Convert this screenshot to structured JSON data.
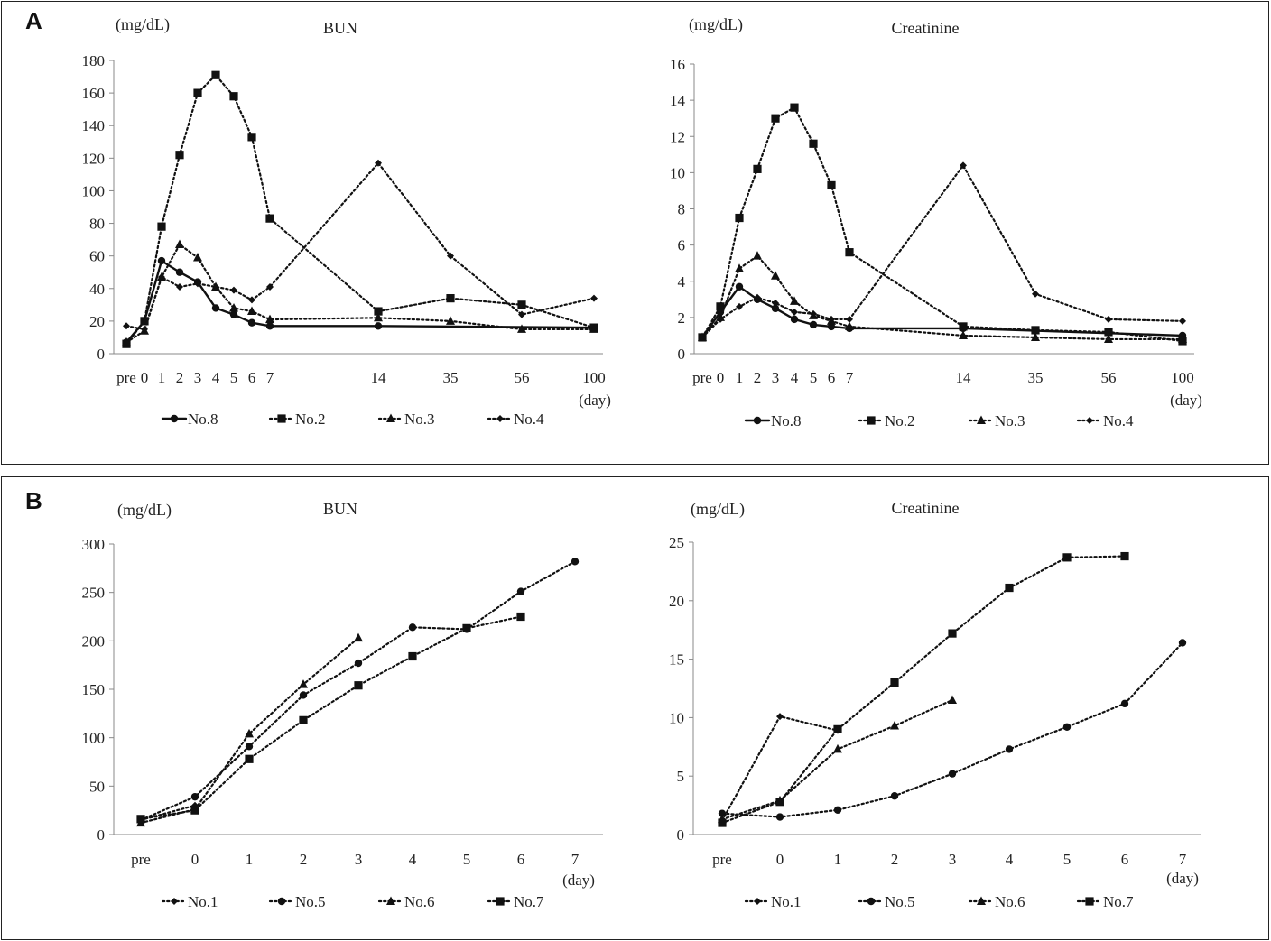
{
  "panels": [
    {
      "label": "A"
    },
    {
      "label": "B"
    }
  ],
  "chart_data": [
    {
      "panel": "A",
      "type": "line",
      "title": "BUN",
      "unit_label": "(mg/dL)",
      "xlabel": "(day)",
      "categories": [
        "pre",
        "0",
        "1",
        "2",
        "3",
        "4",
        "5",
        "6",
        "7",
        "14",
        "35",
        "56",
        "100"
      ],
      "ylim": [
        0,
        180
      ],
      "yticks": [
        0,
        20,
        40,
        60,
        80,
        100,
        120,
        140,
        160,
        180
      ],
      "series": [
        {
          "name": "No.8",
          "marker": "circle",
          "style": "solid",
          "values": [
            7,
            20,
            57,
            50,
            44,
            28,
            24,
            19,
            17,
            17,
            null,
            null,
            16
          ]
        },
        {
          "name": "No.2",
          "marker": "square",
          "style": "dotted",
          "values": [
            6,
            20,
            78,
            122,
            160,
            171,
            158,
            133,
            83,
            26,
            34,
            30,
            16
          ]
        },
        {
          "name": "No.3",
          "marker": "triangle",
          "style": "dotted",
          "values": [
            7,
            14,
            47,
            67,
            59,
            41,
            28,
            26,
            21,
            22,
            20,
            15,
            15
          ]
        },
        {
          "name": "No.4",
          "marker": "diamond",
          "style": "dotted",
          "values": [
            17,
            15,
            47,
            41,
            43,
            41,
            39,
            33,
            41,
            117,
            60,
            24,
            34
          ]
        }
      ]
    },
    {
      "panel": "A",
      "type": "line",
      "title": "Creatinine",
      "unit_label": "(mg/dL)",
      "xlabel": "(day)",
      "categories": [
        "pre",
        "0",
        "1",
        "2",
        "3",
        "4",
        "5",
        "6",
        "7",
        "14",
        "35",
        "56",
        "100"
      ],
      "ylim": [
        0,
        16
      ],
      "yticks": [
        0,
        2,
        4,
        6,
        8,
        10,
        12,
        14,
        16
      ],
      "series": [
        {
          "name": "No.8",
          "marker": "circle",
          "style": "solid",
          "values": [
            0.9,
            2.3,
            3.7,
            3.0,
            2.5,
            1.9,
            1.6,
            1.5,
            1.4,
            1.4,
            null,
            null,
            1.0
          ]
        },
        {
          "name": "No.2",
          "marker": "square",
          "style": "dotted",
          "values": [
            0.9,
            2.6,
            7.5,
            10.2,
            13.0,
            13.6,
            11.6,
            9.3,
            5.6,
            1.5,
            1.3,
            1.2,
            0.7
          ]
        },
        {
          "name": "No.3",
          "marker": "triangle",
          "style": "dotted",
          "values": [
            0.9,
            2.0,
            4.7,
            5.4,
            4.3,
            2.9,
            2.1,
            1.8,
            1.5,
            1.0,
            0.9,
            0.8,
            0.8
          ]
        },
        {
          "name": "No.4",
          "marker": "diamond",
          "style": "dotted",
          "values": [
            0.9,
            1.9,
            2.6,
            3.1,
            2.8,
            2.3,
            2.2,
            1.9,
            1.9,
            10.4,
            3.3,
            1.9,
            1.8
          ]
        }
      ]
    },
    {
      "panel": "B",
      "type": "line",
      "title": "BUN",
      "unit_label": "(mg/dL)",
      "xlabel": "(day)",
      "categories": [
        "pre",
        "0",
        "1",
        "2",
        "3",
        "4",
        "5",
        "6",
        "7"
      ],
      "ylim": [
        0,
        300
      ],
      "yticks": [
        0,
        50,
        100,
        150,
        200,
        250,
        300
      ],
      "series": [
        {
          "name": "No.1",
          "marker": "diamond",
          "style": "dotted",
          "values": [
            15,
            30,
            null,
            null,
            null,
            null,
            null,
            null,
            null
          ]
        },
        {
          "name": "No.5",
          "marker": "circle",
          "style": "dotted",
          "values": [
            15,
            39,
            91,
            144,
            177,
            214,
            212,
            251,
            282
          ]
        },
        {
          "name": "No.6",
          "marker": "triangle",
          "style": "dotted",
          "values": [
            12,
            26,
            104,
            155,
            203,
            null,
            null,
            null,
            null
          ]
        },
        {
          "name": "No.7",
          "marker": "square",
          "style": "dotted",
          "values": [
            16,
            25,
            78,
            118,
            154,
            184,
            213,
            225,
            null
          ]
        }
      ]
    },
    {
      "panel": "B",
      "type": "line",
      "title": "Creatinine",
      "unit_label": "(mg/dL)",
      "xlabel": "(day)",
      "categories": [
        "pre",
        "0",
        "1",
        "2",
        "3",
        "4",
        "5",
        "6",
        "7"
      ],
      "ylim": [
        0,
        25
      ],
      "yticks": [
        0,
        5,
        10,
        15,
        20,
        25
      ],
      "series": [
        {
          "name": "No.1",
          "marker": "diamond",
          "style": "dotted",
          "values": [
            1.2,
            10.1,
            8.9,
            null,
            null,
            null,
            null,
            null,
            null
          ]
        },
        {
          "name": "No.5",
          "marker": "circle",
          "style": "dotted",
          "values": [
            1.8,
            1.5,
            2.1,
            3.3,
            5.2,
            7.3,
            9.2,
            11.2,
            16.4
          ]
        },
        {
          "name": "No.6",
          "marker": "triangle",
          "style": "dotted",
          "values": [
            1.3,
            2.9,
            7.3,
            9.3,
            11.5,
            null,
            null,
            null,
            null
          ]
        },
        {
          "name": "No.7",
          "marker": "square",
          "style": "dotted",
          "values": [
            1.0,
            2.8,
            9.0,
            13.0,
            17.2,
            21.1,
            23.7,
            23.8,
            null
          ]
        }
      ]
    }
  ]
}
